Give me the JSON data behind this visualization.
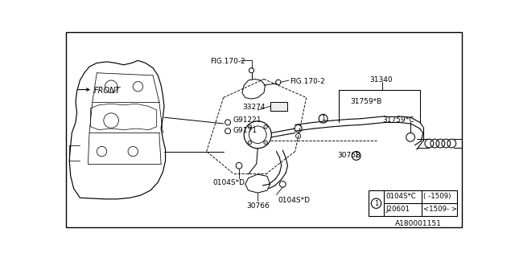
{
  "bg_color": "#ffffff",
  "fig_id": "A180001151",
  "front_label": "FRONT",
  "labels": {
    "FIG170_2_top": "FIG.170-2",
    "FIG170_2_right": "FIG.170-2",
    "part_33274": "33274",
    "part_G91221": "G91221",
    "part_G9171": "G9171",
    "part_31340": "31340",
    "part_31759B": "31759*B",
    "part_31759C": "31759*C",
    "part_30768": "30768",
    "part_0104SD_left": "0104S*D",
    "part_0104SD_right": "0104S*D",
    "part_30766": "30766"
  },
  "legend": {
    "col1_row1": "0104S*C",
    "col2_row1": "( -1509)",
    "col1_row2": "J20601",
    "col2_row2": "<1509- >"
  }
}
